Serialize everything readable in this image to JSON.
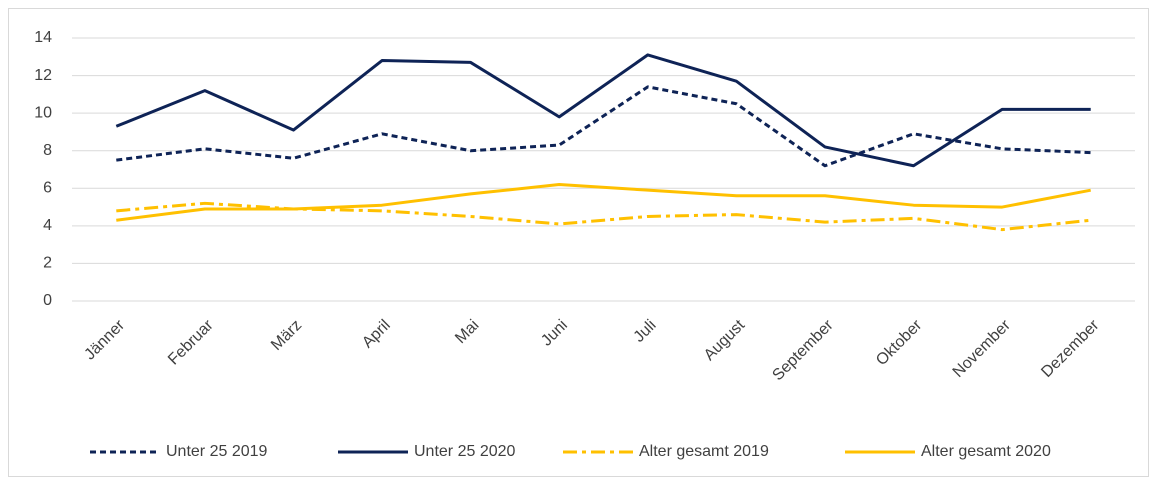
{
  "chart_data": {
    "type": "line",
    "categories": [
      "Jänner",
      "Februar",
      "März",
      "April",
      "Mai",
      "Juni",
      "Juli",
      "August",
      "September",
      "Oktober",
      "November",
      "Dezember"
    ],
    "series": [
      {
        "name": "Unter 25 2019",
        "color": "#0e2356",
        "dash": "dashed",
        "values": [
          7.5,
          8.1,
          7.6,
          8.9,
          8.0,
          8.3,
          11.4,
          10.5,
          7.2,
          8.9,
          8.1,
          7.9
        ]
      },
      {
        "name": "Unter 25 2020",
        "color": "#0e2356",
        "dash": "solid",
        "values": [
          9.3,
          11.2,
          9.1,
          12.8,
          12.7,
          9.8,
          13.1,
          11.7,
          8.2,
          7.2,
          10.2,
          10.2
        ]
      },
      {
        "name": "Alter gesamt 2019",
        "color": "#ffc000",
        "dash": "dashdot",
        "values": [
          4.8,
          5.2,
          4.9,
          4.8,
          4.5,
          4.1,
          4.5,
          4.6,
          4.2,
          4.4,
          3.8,
          4.3
        ]
      },
      {
        "name": "Alter gesamt 2020",
        "color": "#ffc000",
        "dash": "solid",
        "values": [
          4.3,
          4.9,
          4.9,
          5.1,
          5.7,
          6.2,
          5.9,
          5.6,
          5.6,
          5.1,
          5.0,
          5.9
        ]
      }
    ],
    "ylim": [
      0,
      14
    ],
    "yticks": [
      0,
      2,
      4,
      6,
      8,
      10,
      12,
      14
    ],
    "grid": true,
    "legend": "bottom"
  }
}
